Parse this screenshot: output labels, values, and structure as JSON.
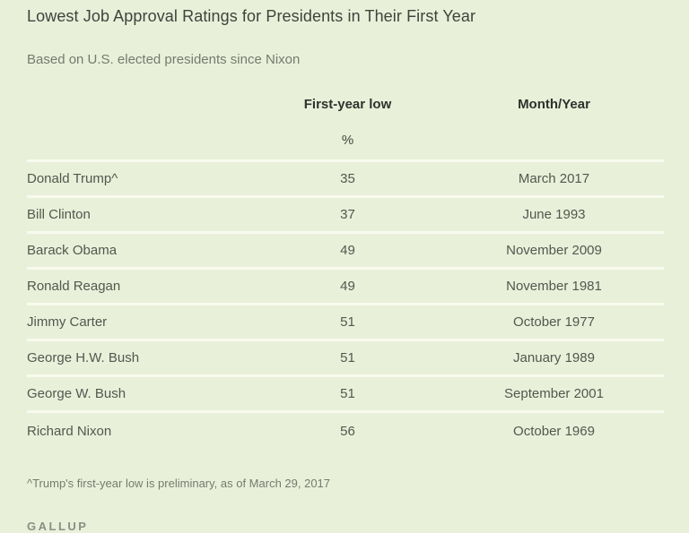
{
  "page": {
    "title": "Lowest Job Approval Ratings for Presidents in Their First Year",
    "subtitle": "Based on U.S. elected presidents since Nixon",
    "footnote": "^Trump's first-year low is preliminary, as of March 29, 2017",
    "source": "GALLUP"
  },
  "colors": {
    "background": "#e9f0da",
    "row_divider": "#f8faee",
    "title_text": "#3f433c",
    "muted_text": "#767a6f",
    "cell_text": "#53574e",
    "header_text": "#2e332c",
    "source_text": "#8b8e84"
  },
  "table": {
    "header": {
      "low_label": "First-year low",
      "month_label": "Month/Year",
      "unit": "%"
    },
    "rows": [
      {
        "president": "Donald Trump^",
        "low": "35",
        "month_year": "March 2017"
      },
      {
        "president": "Bill Clinton",
        "low": "37",
        "month_year": "June 1993"
      },
      {
        "president": "Barack Obama",
        "low": "49",
        "month_year": "November 2009"
      },
      {
        "president": "Ronald Reagan",
        "low": "49",
        "month_year": "November 1981"
      },
      {
        "president": "Jimmy Carter",
        "low": "51",
        "month_year": "October 1977"
      },
      {
        "president": "George H.W. Bush",
        "low": "51",
        "month_year": "January 1989"
      },
      {
        "president": "George W. Bush",
        "low": "51",
        "month_year": "September 2001"
      },
      {
        "president": "Richard Nixon",
        "low": "56",
        "month_year": "October 1969"
      }
    ]
  },
  "chart_data": {
    "type": "table",
    "title": "Lowest Job Approval Ratings for Presidents in Their First Year",
    "subtitle": "Based on U.S. elected presidents since Nixon",
    "columns": [
      "",
      "First-year low %",
      "Month/Year"
    ],
    "categories": [
      "Donald Trump^",
      "Bill Clinton",
      "Barack Obama",
      "Ronald Reagan",
      "Jimmy Carter",
      "George H.W. Bush",
      "George W. Bush",
      "Richard Nixon"
    ],
    "values": [
      35,
      37,
      49,
      49,
      51,
      51,
      51,
      56
    ],
    "month_year": [
      "March 2017",
      "June 1993",
      "November 2009",
      "November 1981",
      "October 1977",
      "January 1989",
      "September 2001",
      "October 1969"
    ],
    "footnote": "^Trump's first-year low is preliminary, as of March 29, 2017",
    "source": "GALLUP"
  }
}
